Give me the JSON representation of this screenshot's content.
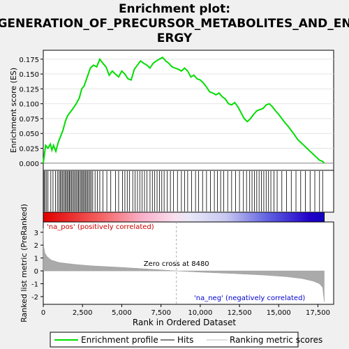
{
  "chart_data": {
    "type": "line",
    "title": "Enrichment plot:\nGENERATION_OF_PRECURSOR_METABOLITES_AND_EN\nERGY",
    "title_lines": [
      "Enrichment plot:",
      "GENERATION_OF_PRECURSOR_METABOLITES_AND_EN",
      "ERGY"
    ],
    "top_panel": {
      "ylabel": "Enrichment score (ES)",
      "ylim": [
        -0.012,
        0.19
      ],
      "yticks": [
        0.0,
        0.025,
        0.05,
        0.075,
        0.1,
        0.125,
        0.15,
        0.175
      ],
      "ytick_labels": [
        "0.000",
        "0.025",
        "0.050",
        "0.075",
        "0.100",
        "0.125",
        "0.150",
        "0.175"
      ],
      "series": [
        {
          "name": "Enrichment profile",
          "color": "#00dd00",
          "x": [
            0,
            60,
            150,
            300,
            450,
            550,
            650,
            800,
            950,
            1100,
            1250,
            1400,
            1550,
            1700,
            1900,
            2100,
            2300,
            2450,
            2600,
            2800,
            3000,
            3200,
            3400,
            3600,
            3800,
            4000,
            4200,
            4400,
            4600,
            4800,
            5000,
            5200,
            5400,
            5600,
            5800,
            6000,
            6200,
            6400,
            6600,
            6800,
            7000,
            7200,
            7400,
            7600,
            7800,
            8000,
            8200,
            8400,
            8600,
            8800,
            9000,
            9200,
            9400,
            9600,
            9800,
            10000,
            10200,
            10400,
            10600,
            10800,
            11000,
            11200,
            11400,
            11600,
            11800,
            12000,
            12200,
            12400,
            12600,
            12800,
            13000,
            13200,
            13400,
            13600,
            13800,
            14000,
            14200,
            14400,
            14600,
            14800,
            15000,
            15200,
            15400,
            15600,
            15800,
            16000,
            16200,
            16400,
            16600,
            16800,
            17000,
            17200,
            17400,
            17600,
            17800,
            17900
          ],
          "y": [
            0.0,
            0.012,
            0.03,
            0.025,
            0.032,
            0.022,
            0.03,
            0.02,
            0.035,
            0.045,
            0.055,
            0.07,
            0.08,
            0.085,
            0.092,
            0.1,
            0.11,
            0.125,
            0.13,
            0.145,
            0.16,
            0.165,
            0.162,
            0.175,
            0.168,
            0.162,
            0.148,
            0.155,
            0.15,
            0.145,
            0.155,
            0.15,
            0.142,
            0.14,
            0.158,
            0.165,
            0.172,
            0.168,
            0.165,
            0.16,
            0.168,
            0.172,
            0.175,
            0.178,
            0.172,
            0.168,
            0.162,
            0.16,
            0.158,
            0.155,
            0.16,
            0.155,
            0.145,
            0.148,
            0.142,
            0.14,
            0.135,
            0.128,
            0.12,
            0.118,
            0.115,
            0.118,
            0.112,
            0.108,
            0.1,
            0.098,
            0.102,
            0.095,
            0.085,
            0.075,
            0.07,
            0.075,
            0.082,
            0.088,
            0.09,
            0.092,
            0.098,
            0.1,
            0.095,
            0.088,
            0.082,
            0.075,
            0.068,
            0.062,
            0.055,
            0.048,
            0.04,
            0.035,
            0.03,
            0.025,
            0.02,
            0.015,
            0.01,
            0.005,
            0.003,
            0.0
          ]
        }
      ]
    },
    "hits_x": [
      50,
      120,
      210,
      300,
      480,
      620,
      780,
      900,
      1000,
      1080,
      1150,
      1230,
      1300,
      1380,
      1450,
      1520,
      1590,
      1660,
      1720,
      1800,
      1870,
      1950,
      2020,
      2100,
      2180,
      2250,
      2320,
      2400,
      2470,
      2540,
      2610,
      2680,
      2750,
      2830,
      2900,
      2980,
      3060,
      3150,
      3300,
      3450,
      3600,
      3800,
      4050,
      4300,
      4600,
      4800,
      5050,
      5200,
      5350,
      5500,
      5700,
      5850,
      6000,
      6150,
      6300,
      6450,
      6600,
      6800,
      6950,
      7100,
      7250,
      7400,
      7550,
      7700,
      7900,
      8100,
      8300,
      8550,
      8800,
      9000,
      9200,
      9450,
      9700,
      9900,
      10150,
      10400,
      10650,
      10900,
      11100,
      11300,
      11500,
      11750,
      12000,
      12250,
      12500,
      12750,
      12950,
      13150,
      13300,
      13450,
      13600,
      13750,
      13900,
      14050,
      14200,
      14350,
      14500,
      14700,
      14900,
      15200,
      15500,
      15800,
      16100,
      16400,
      16700,
      17000,
      17300,
      17600,
      17800
    ],
    "ranked_panel": {
      "ylabel": "Ranked list metric (PreRanked)",
      "ylim": [
        -2.6,
        3.8
      ],
      "yticks": [
        3,
        2,
        1,
        0,
        -1,
        -2
      ],
      "ytick_labels": [
        "3",
        "2",
        "1",
        "0",
        "-1",
        "-2"
      ],
      "xlabel": "Rank in Ordered Dataset",
      "xlim": [
        0,
        18500
      ],
      "xticks": [
        0,
        2500,
        5000,
        7500,
        10000,
        12500,
        15000,
        17500
      ],
      "xtick_labels": [
        "0",
        "2,500",
        "5,000",
        "7,500",
        "10,000",
        "12,500",
        "15,000",
        "17,500"
      ],
      "n_genes": 17900,
      "zero_cross": 8480,
      "zero_cross_label": "Zero cross at 8480",
      "pos_label": "'na_pos' (positively correlated)",
      "neg_label": "'na_neg' (negatively correlated)",
      "metric_profile": {
        "rank": [
          0,
          30,
          100,
          250,
          500,
          1000,
          2000,
          3000,
          5000,
          7000,
          8480,
          10000,
          12000,
          14000,
          15500,
          16500,
          17200,
          17600,
          17800,
          17900
        ],
        "value": [
          3.3,
          1.9,
          1.4,
          1.1,
          0.85,
          0.65,
          0.5,
          0.4,
          0.27,
          0.12,
          0.0,
          -0.1,
          -0.2,
          -0.32,
          -0.45,
          -0.6,
          -0.8,
          -1.0,
          -1.3,
          -2.4
        ]
      }
    },
    "legend": {
      "placement": "bottom",
      "items": [
        {
          "label": "Enrichment profile",
          "color": "#00dd00"
        },
        {
          "label": "Hits",
          "color": "#000000"
        },
        {
          "label": "Ranking metric scores",
          "color": "#bbbbbb"
        }
      ]
    },
    "colors": {
      "profile": "#00dd00",
      "hits": "#000000",
      "metric_fill": "#aaaaaa",
      "pos_label": "#cc0000",
      "neg_label": "#0000cc",
      "zero_line": "#aaaaaa"
    }
  }
}
